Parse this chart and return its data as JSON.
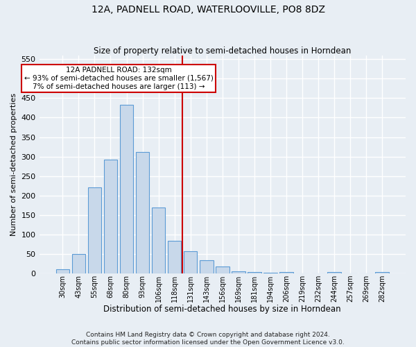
{
  "title": "12A, PADNELL ROAD, WATERLOOVILLE, PO8 8DZ",
  "subtitle": "Size of property relative to semi-detached houses in Horndean",
  "xlabel": "Distribution of semi-detached houses by size in Horndean",
  "ylabel": "Number of semi-detached properties",
  "footer_line1": "Contains HM Land Registry data © Crown copyright and database right 2024.",
  "footer_line2": "Contains public sector information licensed under the Open Government Licence v3.0.",
  "bar_labels": [
    "30sqm",
    "43sqm",
    "55sqm",
    "68sqm",
    "80sqm",
    "93sqm",
    "106sqm",
    "118sqm",
    "131sqm",
    "143sqm",
    "156sqm",
    "169sqm",
    "181sqm",
    "194sqm",
    "206sqm",
    "219sqm",
    "232sqm",
    "244sqm",
    "257sqm",
    "269sqm",
    "282sqm"
  ],
  "bar_values": [
    12,
    50,
    222,
    293,
    432,
    312,
    170,
    85,
    57,
    35,
    18,
    7,
    4,
    3,
    5,
    1,
    0,
    4,
    1,
    0,
    4
  ],
  "bar_color": "#c8d8ea",
  "bar_edge_color": "#5b9bd5",
  "annotation_title": "12A PADNELL ROAD: 132sqm",
  "annotation_line1": "← 93% of semi-detached houses are smaller (1,567)",
  "annotation_line2": "7% of semi-detached houses are larger (113) →",
  "vline_color": "#cc0000",
  "vline_x_idx": 8,
  "ylim": [
    0,
    560
  ],
  "yticks": [
    0,
    50,
    100,
    150,
    200,
    250,
    300,
    350,
    400,
    450,
    500,
    550
  ],
  "background_color": "#e8eef4",
  "grid_color": "#ffffff",
  "title_fontsize": 10,
  "subtitle_fontsize": 8.5,
  "ylabel_fontsize": 8,
  "xlabel_fontsize": 8.5,
  "tick_fontsize": 7,
  "footer_fontsize": 6.5,
  "annotation_fontsize": 7.5
}
